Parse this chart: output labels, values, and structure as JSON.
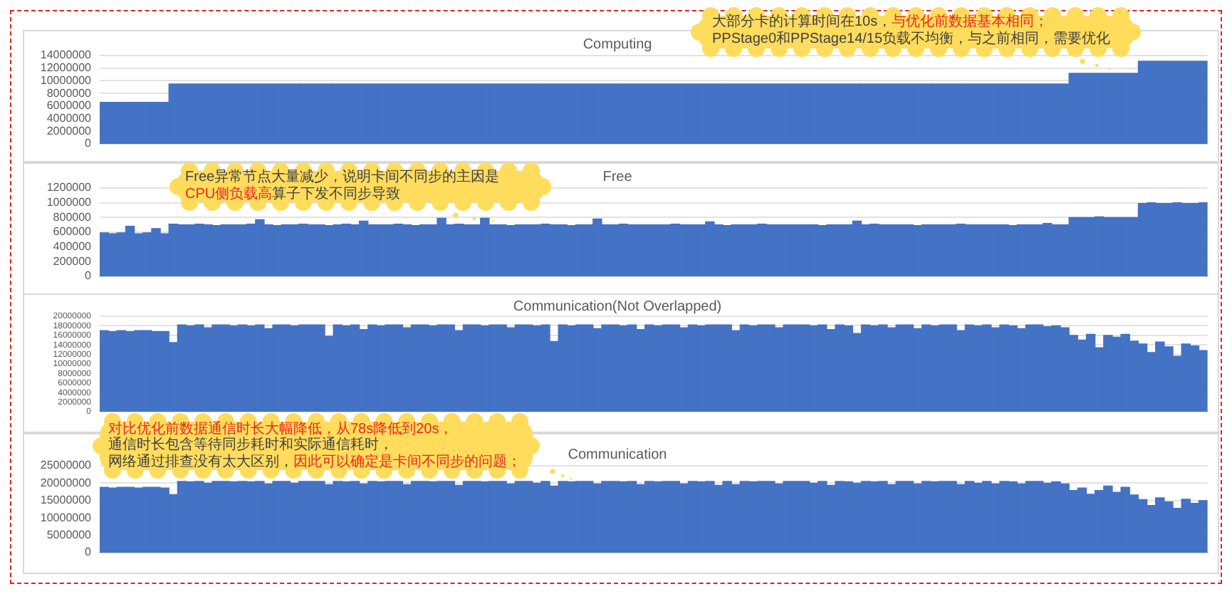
{
  "chart_data": [
    {
      "type": "bar",
      "title": "Computing",
      "color": "#4472c4",
      "grid": "y",
      "ylim": [
        0,
        14000000
      ],
      "yticks": [
        0,
        2000000,
        4000000,
        6000000,
        8000000,
        10000000,
        12000000,
        14000000
      ],
      "categories": [
        null,
        null,
        null,
        null,
        null,
        null,
        null,
        null,
        null,
        null,
        null,
        null,
        null,
        null,
        null,
        null,
        null,
        null,
        null,
        null,
        null,
        null,
        null,
        null,
        null,
        null,
        null,
        null,
        null,
        null,
        null,
        null,
        null,
        null,
        null,
        null,
        null,
        null,
        null,
        null,
        null,
        null,
        null,
        null,
        null,
        null,
        null,
        null,
        null,
        null,
        null,
        null,
        null,
        null,
        null,
        null,
        null,
        null,
        null,
        null,
        null,
        null,
        null,
        null,
        null,
        null,
        null,
        null,
        null,
        null,
        null,
        null,
        null,
        null,
        null,
        null,
        null,
        null,
        null,
        null,
        null,
        null,
        null,
        null,
        null,
        null,
        null,
        null,
        null,
        null,
        null,
        null,
        null,
        null,
        null,
        null,
        null,
        null,
        null,
        null,
        null,
        null,
        null,
        null,
        null,
        null,
        null,
        null,
        null,
        null,
        null,
        null,
        null,
        null,
        null,
        null,
        null,
        null,
        null,
        null,
        null,
        null,
        null,
        null,
        null,
        null,
        null,
        null
      ],
      "values": [
        6600000,
        6600000,
        6600000,
        6600000,
        6600000,
        6600000,
        6600000,
        6600000,
        9500000,
        9500000,
        9500000,
        9500000,
        9500000,
        9500000,
        9500000,
        9500000,
        9500000,
        9500000,
        9500000,
        9500000,
        9500000,
        9500000,
        9500000,
        9500000,
        9500000,
        9500000,
        9500000,
        9500000,
        9500000,
        9500000,
        9500000,
        9500000,
        9500000,
        9500000,
        9500000,
        9500000,
        9500000,
        9500000,
        9500000,
        9500000,
        9500000,
        9500000,
        9500000,
        9500000,
        9500000,
        9500000,
        9500000,
        9500000,
        9500000,
        9500000,
        9500000,
        9500000,
        9500000,
        9500000,
        9500000,
        9500000,
        9500000,
        9500000,
        9500000,
        9500000,
        9500000,
        9500000,
        9500000,
        9500000,
        9500000,
        9500000,
        9500000,
        9500000,
        9500000,
        9500000,
        9500000,
        9500000,
        9500000,
        9500000,
        9500000,
        9500000,
        9500000,
        9500000,
        9500000,
        9500000,
        9500000,
        9500000,
        9500000,
        9500000,
        9500000,
        9500000,
        9500000,
        9500000,
        9500000,
        9500000,
        9500000,
        9500000,
        9500000,
        9500000,
        9500000,
        9500000,
        9500000,
        9500000,
        9500000,
        9500000,
        9500000,
        9500000,
        9500000,
        9500000,
        9500000,
        9500000,
        9500000,
        9500000,
        9500000,
        9500000,
        9500000,
        9500000,
        11200000,
        11200000,
        11200000,
        11200000,
        11200000,
        11200000,
        11200000,
        11200000,
        13100000,
        13100000,
        13100000,
        13100000,
        13100000,
        13100000,
        13100000,
        13100000
      ],
      "annotations": [
        "大部分卡的计算时间在10s，",
        "与优化前数据基本相同；",
        "PPStage0和PPStage14/15负载不均衡，与之前相同，需要优化"
      ]
    },
    {
      "type": "bar",
      "title": "Free",
      "color": "#4472c4",
      "grid": "y",
      "ylim": [
        0,
        1200000
      ],
      "yticks": [
        0,
        200000,
        400000,
        600000,
        800000,
        1000000,
        1200000
      ],
      "categories": [
        null,
        null,
        null,
        null,
        null,
        null,
        null,
        null,
        null,
        null,
        null,
        null,
        null,
        null,
        null,
        null,
        null,
        null,
        null,
        null,
        null,
        null,
        null,
        null,
        null,
        null,
        null,
        null,
        null,
        null,
        null,
        null,
        null,
        null,
        null,
        null,
        null,
        null,
        null,
        null,
        null,
        null,
        null,
        null,
        null,
        null,
        null,
        null,
        null,
        null,
        null,
        null,
        null,
        null,
        null,
        null,
        null,
        null,
        null,
        null,
        null,
        null,
        null,
        null,
        null,
        null,
        null,
        null,
        null,
        null,
        null,
        null,
        null,
        null,
        null,
        null,
        null,
        null,
        null,
        null,
        null,
        null,
        null,
        null,
        null,
        null,
        null,
        null,
        null,
        null,
        null,
        null,
        null,
        null,
        null,
        null,
        null,
        null,
        null,
        null,
        null,
        null,
        null,
        null,
        null,
        null,
        null,
        null,
        null,
        null,
        null,
        null,
        null,
        null,
        null,
        null,
        null,
        null,
        null,
        null,
        null,
        null,
        null,
        null,
        null,
        null,
        null,
        null
      ],
      "values": [
        590000,
        580000,
        590000,
        680000,
        580000,
        590000,
        650000,
        580000,
        710000,
        700000,
        700000,
        710000,
        700000,
        690000,
        700000,
        700000,
        700000,
        710000,
        770000,
        700000,
        690000,
        700000,
        700000,
        710000,
        700000,
        700000,
        690000,
        700000,
        710000,
        700000,
        750000,
        700000,
        700000,
        700000,
        710000,
        700000,
        690000,
        700000,
        700000,
        790000,
        700000,
        710000,
        700000,
        700000,
        790000,
        700000,
        700000,
        690000,
        700000,
        700000,
        700000,
        710000,
        700000,
        700000,
        690000,
        700000,
        700000,
        780000,
        700000,
        700000,
        710000,
        700000,
        700000,
        700000,
        700000,
        700000,
        710000,
        700000,
        700000,
        700000,
        740000,
        700000,
        690000,
        700000,
        700000,
        700000,
        710000,
        700000,
        700000,
        700000,
        700000,
        700000,
        700000,
        690000,
        700000,
        700000,
        700000,
        750000,
        700000,
        710000,
        700000,
        700000,
        700000,
        700000,
        690000,
        700000,
        700000,
        700000,
        700000,
        710000,
        700000,
        700000,
        700000,
        700000,
        700000,
        690000,
        700000,
        700000,
        700000,
        720000,
        700000,
        700000,
        800000,
        800000,
        800000,
        810000,
        800000,
        800000,
        800000,
        800000,
        990000,
        1000000,
        990000,
        990000,
        1000000,
        990000,
        990000,
        1000000
      ],
      "annotations": [
        "Free异常节点大量减少，说明卡间不同步的主因是",
        "CPU侧负载高",
        "算子下发不同步导致"
      ]
    },
    {
      "type": "bar",
      "title": "Communication(Not Overlapped)",
      "color": "#4472c4",
      "grid": "y",
      "ylim": [
        0,
        20000000
      ],
      "yticks": [
        0,
        2000000,
        4000000,
        6000000,
        8000000,
        10000000,
        12000000,
        14000000,
        16000000,
        18000000,
        20000000
      ],
      "categories": [
        null,
        null,
        null,
        null,
        null,
        null,
        null,
        null,
        null,
        null,
        null,
        null,
        null,
        null,
        null,
        null,
        null,
        null,
        null,
        null,
        null,
        null,
        null,
        null,
        null,
        null,
        null,
        null,
        null,
        null,
        null,
        null,
        null,
        null,
        null,
        null,
        null,
        null,
        null,
        null,
        null,
        null,
        null,
        null,
        null,
        null,
        null,
        null,
        null,
        null,
        null,
        null,
        null,
        null,
        null,
        null,
        null,
        null,
        null,
        null,
        null,
        null,
        null,
        null,
        null,
        null,
        null,
        null,
        null,
        null,
        null,
        null,
        null,
        null,
        null,
        null,
        null,
        null,
        null,
        null,
        null,
        null,
        null,
        null,
        null,
        null,
        null,
        null,
        null,
        null,
        null,
        null,
        null,
        null,
        null,
        null,
        null,
        null,
        null,
        null,
        null,
        null,
        null,
        null,
        null,
        null,
        null,
        null,
        null,
        null,
        null,
        null,
        null,
        null,
        null,
        null,
        null,
        null,
        null,
        null,
        null,
        null,
        null,
        null,
        null,
        null,
        null,
        null
      ],
      "values": [
        17000000,
        16800000,
        17000000,
        16800000,
        17000000,
        17000000,
        16800000,
        16800000,
        14500000,
        18200000,
        18000000,
        18200000,
        17600000,
        18200000,
        18200000,
        18000000,
        18200000,
        18000000,
        18200000,
        17400000,
        18200000,
        18200000,
        18000000,
        18200000,
        18200000,
        18200000,
        15800000,
        18200000,
        18000000,
        18200000,
        17200000,
        18200000,
        18000000,
        18200000,
        18200000,
        17600000,
        18200000,
        18200000,
        18000000,
        18200000,
        18200000,
        17000000,
        18200000,
        18200000,
        18000000,
        18200000,
        18200000,
        17600000,
        18200000,
        18200000,
        18000000,
        18200000,
        14700000,
        18200000,
        18000000,
        18200000,
        18200000,
        17400000,
        18200000,
        18200000,
        18000000,
        18200000,
        17200000,
        18200000,
        18000000,
        18200000,
        18200000,
        17600000,
        18200000,
        18000000,
        18200000,
        18200000,
        18200000,
        17000000,
        18200000,
        18000000,
        18200000,
        18200000,
        17600000,
        18200000,
        18200000,
        18200000,
        18000000,
        18200000,
        17200000,
        18200000,
        18000000,
        16400000,
        18200000,
        18000000,
        18200000,
        17600000,
        18200000,
        18200000,
        17400000,
        18200000,
        18000000,
        18200000,
        18200000,
        17000000,
        18200000,
        18000000,
        18200000,
        17600000,
        18200000,
        18000000,
        17400000,
        18200000,
        18200000,
        17800000,
        18000000,
        17600000,
        16000000,
        15000000,
        16200000,
        13400000,
        16000000,
        15600000,
        16200000,
        14800000,
        14200000,
        12400000,
        14600000,
        13600000,
        11600000,
        14200000,
        13800000,
        12800000
      ]
    },
    {
      "type": "bar",
      "title": "Communication",
      "color": "#4472c4",
      "grid": "y",
      "ylim": [
        0,
        25000000
      ],
      "yticks": [
        0,
        5000000,
        10000000,
        15000000,
        20000000,
        25000000
      ],
      "categories": [
        null,
        null,
        null,
        null,
        null,
        null,
        null,
        null,
        null,
        null,
        null,
        null,
        null,
        null,
        null,
        null,
        null,
        null,
        null,
        null,
        null,
        null,
        null,
        null,
        null,
        null,
        null,
        null,
        null,
        null,
        null,
        null,
        null,
        null,
        null,
        null,
        null,
        null,
        null,
        null,
        null,
        null,
        null,
        null,
        null,
        null,
        null,
        null,
        null,
        null,
        null,
        null,
        null,
        null,
        null,
        null,
        null,
        null,
        null,
        null,
        null,
        null,
        null,
        null,
        null,
        null,
        null,
        null,
        null,
        null,
        null,
        null,
        null,
        null,
        null,
        null,
        null,
        null,
        null,
        null,
        null,
        null,
        null,
        null,
        null,
        null,
        null,
        null,
        null,
        null,
        null,
        null,
        null,
        null,
        null,
        null,
        null,
        null,
        null,
        null,
        null,
        null,
        null,
        null,
        null,
        null,
        null,
        null,
        null,
        null,
        null,
        null,
        null,
        null,
        null,
        null,
        null,
        null,
        null,
        null,
        null,
        null,
        null,
        null,
        null,
        null,
        null,
        null
      ],
      "values": [
        18800000,
        18600000,
        18800000,
        18800000,
        18600000,
        18800000,
        18800000,
        18600000,
        16700000,
        20500000,
        20400000,
        20500000,
        20000000,
        20500000,
        20500000,
        20400000,
        20500000,
        20400000,
        20500000,
        19800000,
        20500000,
        20500000,
        20000000,
        20500000,
        20500000,
        20500000,
        19600000,
        20500000,
        20400000,
        20500000,
        19800000,
        20500000,
        20400000,
        20500000,
        20500000,
        19600000,
        20500000,
        20500000,
        20400000,
        20500000,
        20500000,
        19400000,
        20500000,
        20500000,
        20400000,
        20500000,
        20500000,
        19800000,
        20500000,
        20500000,
        20000000,
        20500000,
        19200000,
        20500000,
        20400000,
        20500000,
        20500000,
        19800000,
        20500000,
        20500000,
        20400000,
        20500000,
        19600000,
        20500000,
        20400000,
        20500000,
        20500000,
        19800000,
        20500000,
        20400000,
        20500000,
        19400000,
        20500000,
        19600000,
        20500000,
        20400000,
        20500000,
        20500000,
        19800000,
        20500000,
        20500000,
        20500000,
        20000000,
        20500000,
        19400000,
        20500000,
        20400000,
        20000000,
        20500000,
        20400000,
        20500000,
        19600000,
        20500000,
        20500000,
        19800000,
        20500000,
        20400000,
        20500000,
        20500000,
        19600000,
        20500000,
        20000000,
        20500000,
        19800000,
        20500000,
        20400000,
        19800000,
        20500000,
        20500000,
        20000000,
        20400000,
        19800000,
        17900000,
        18600000,
        16800000,
        17900000,
        19200000,
        17400000,
        18800000,
        16600000,
        15300000,
        13600000,
        15800000,
        14600000,
        12800000,
        15400000,
        14200000,
        15000000
      ],
      "annotations": [
        "对比优化前数据通信时长大幅降低，从78s降低到20s，",
        "通信时长包含等待同步耗时和实际通信耗时，",
        "网络通过排查没有太大区别，",
        "因此可以确定是卡间不同步的问题；"
      ]
    }
  ]
}
